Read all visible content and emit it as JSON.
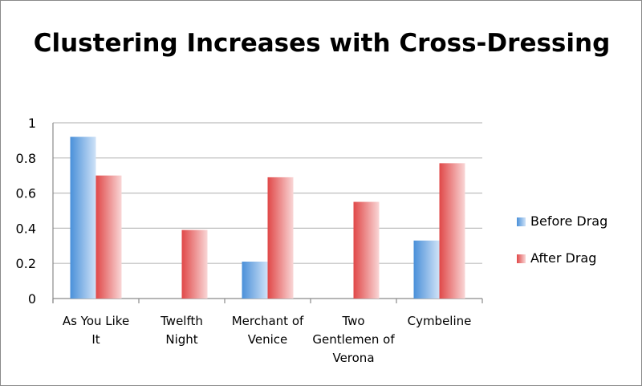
{
  "chart_data": {
    "type": "bar",
    "title": "Clustering Increases with Cross-Dressing",
    "categories": [
      "As You Like It",
      "Twelfth Night",
      "Merchant of Venice",
      "Two Gentlemen of Verona",
      "Cymbeline"
    ],
    "series": [
      {
        "name": "Before Drag",
        "values": [
          0.92,
          0,
          0.21,
          0,
          0.33
        ]
      },
      {
        "name": "After Drag",
        "values": [
          0.7,
          0.39,
          0.69,
          0.55,
          0.77
        ]
      }
    ],
    "xlabel": "",
    "ylabel": "",
    "ylim": [
      0,
      1
    ],
    "yticks": [
      0,
      0.2,
      0.4,
      0.6,
      0.8,
      1
    ],
    "ytick_labels": [
      "0",
      "0.2",
      "0.4",
      "0.6",
      "0.8",
      "1"
    ],
    "grid": true,
    "legend_position": "right",
    "colors": {
      "series": [
        "#4a90d9",
        "#e04848"
      ],
      "series_light": [
        "#cfe2f7",
        "#f9d6d6"
      ],
      "grid": "#bdbdbd",
      "axis": "#8a8a8a"
    }
  }
}
